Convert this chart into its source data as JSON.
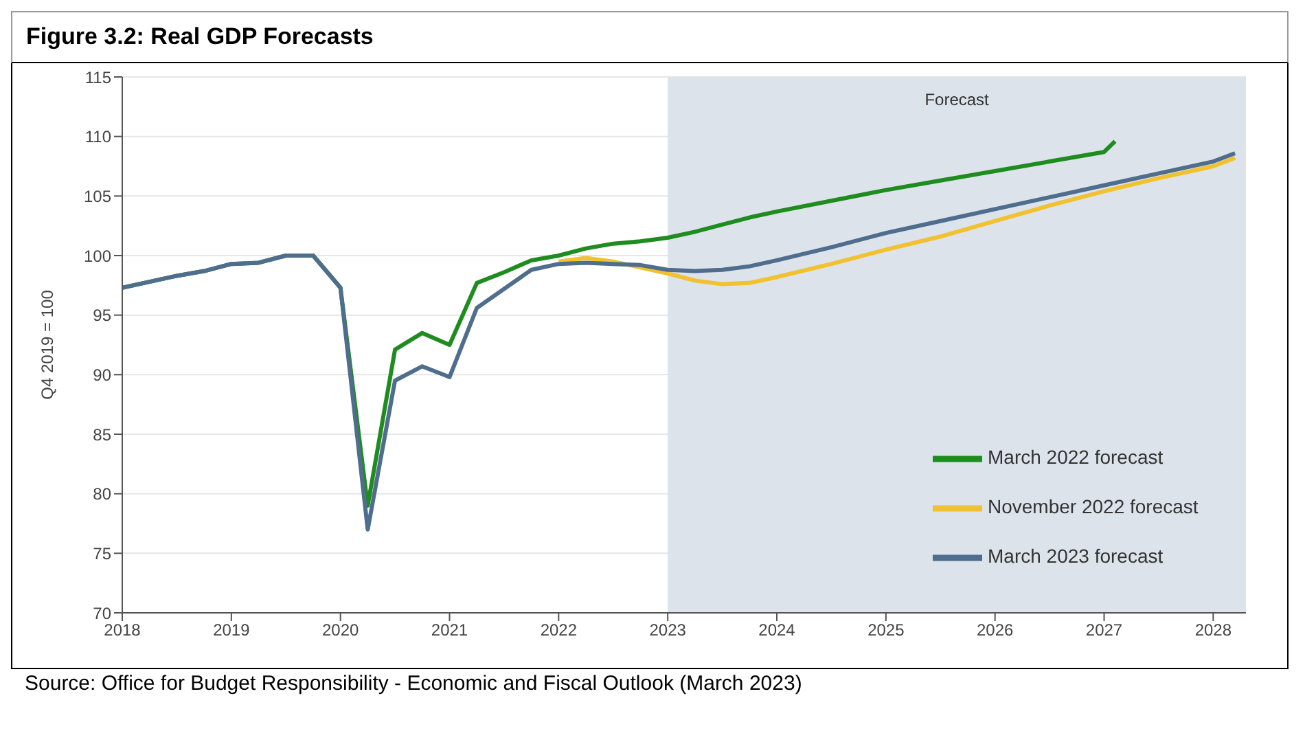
{
  "chart_data": {
    "type": "line",
    "title": "Figure 3.2: Real GDP Forecasts",
    "ylabel": "Q4 2019 = 100",
    "xlim": [
      2018,
      2028.3
    ],
    "xticks": [
      2018,
      2019,
      2020,
      2021,
      2022,
      2023,
      2024,
      2025,
      2026,
      2027,
      2028
    ],
    "ylim": [
      70,
      115
    ],
    "yticks": [
      70,
      75,
      80,
      85,
      90,
      95,
      100,
      105,
      110,
      115
    ],
    "grid": "y",
    "legend": "bottom right",
    "marker": "none",
    "line_style": "solid",
    "bands": [
      {
        "axis": "x",
        "from": 2023,
        "to": 2028.3,
        "label": "Forecast",
        "color": "#dce3eb"
      }
    ],
    "annotations": [
      "Source: Office for Budget Responsibility - Economic and Fiscal Outlook (March 2023)"
    ],
    "series": [
      {
        "name": "March 2022 forecast",
        "color": "#1f8c1f",
        "x": [
          2018,
          2018.25,
          2018.5,
          2018.75,
          2019,
          2019.25,
          2019.5,
          2019.75,
          2020,
          2020.25,
          2020.5,
          2020.75,
          2021,
          2021.25,
          2021.5,
          2021.75,
          2022,
          2022.25,
          2022.5,
          2022.75,
          2023,
          2023.25,
          2023.5,
          2023.75,
          2024,
          2024.5,
          2025,
          2025.5,
          2026,
          2026.5,
          2027,
          2027.1
        ],
        "values": [
          97.3,
          97.8,
          98.3,
          98.7,
          99.3,
          99.4,
          100,
          100,
          97.3,
          79,
          92.1,
          93.5,
          92.5,
          97.7,
          98.6,
          99.6,
          100,
          100.6,
          101,
          101.2,
          101.5,
          102,
          102.6,
          103.2,
          103.7,
          104.6,
          105.5,
          106.3,
          107.1,
          107.9,
          108.7,
          109.6
        ]
      },
      {
        "name": "November 2022 forecast",
        "color": "#f2c12e",
        "x": [
          2022,
          2022.25,
          2022.5,
          2022.75,
          2023,
          2023.25,
          2023.5,
          2023.75,
          2024,
          2024.5,
          2025,
          2025.5,
          2026,
          2026.5,
          2027,
          2027.5,
          2028,
          2028.2
        ],
        "values": [
          99.5,
          99.8,
          99.5,
          99,
          98.5,
          97.9,
          97.6,
          97.7,
          98.2,
          99.3,
          100.5,
          101.6,
          102.9,
          104.2,
          105.4,
          106.5,
          107.5,
          108.2
        ]
      },
      {
        "name": "March 2023 forecast",
        "color": "#4f6d8c",
        "x": [
          2018,
          2018.25,
          2018.5,
          2018.75,
          2019,
          2019.25,
          2019.5,
          2019.75,
          2020,
          2020.25,
          2020.5,
          2020.75,
          2021,
          2021.25,
          2021.5,
          2021.75,
          2022,
          2022.25,
          2022.5,
          2022.75,
          2023,
          2023.25,
          2023.5,
          2023.75,
          2024,
          2024.5,
          2025,
          2025.5,
          2026,
          2026.5,
          2027,
          2027.5,
          2028,
          2028.2
        ],
        "values": [
          97.3,
          97.8,
          98.3,
          98.7,
          99.3,
          99.4,
          100,
          100,
          97.3,
          77,
          89.5,
          90.7,
          89.8,
          95.6,
          97.2,
          98.8,
          99.3,
          99.4,
          99.3,
          99.2,
          98.8,
          98.7,
          98.8,
          99.1,
          99.6,
          100.7,
          101.9,
          102.9,
          103.9,
          104.9,
          105.9,
          106.9,
          107.9,
          108.6
        ]
      }
    ]
  }
}
